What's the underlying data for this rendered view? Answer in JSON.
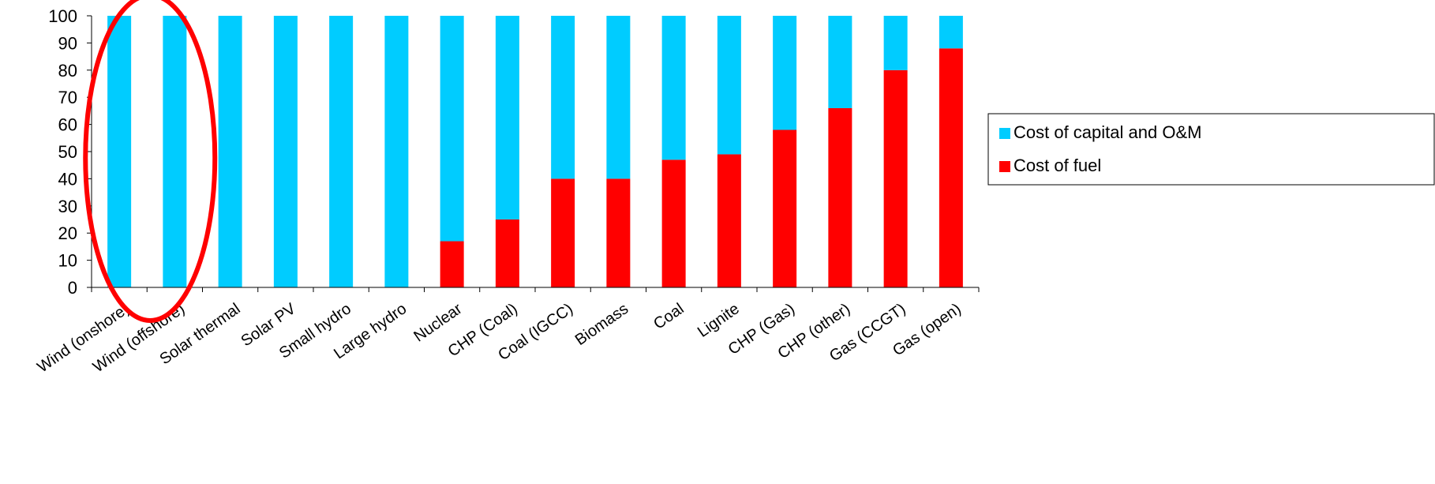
{
  "chart_data": {
    "type": "bar",
    "stacked": true,
    "percent": true,
    "categories": [
      "Wind (onshore)",
      "Wind (offshore)",
      "Solar thermal",
      "Solar PV",
      "Small hydro",
      "Large hydro",
      "Nuclear",
      "CHP (Coal)",
      "Coal (IGCC)",
      "Biomass",
      "Coal",
      "Lignite",
      "CHP (Gas)",
      "CHP (other)",
      "Gas (CCGT)",
      "Gas (open)"
    ],
    "series": [
      {
        "name": "Cost of fuel",
        "color": "#ff0000",
        "values": [
          0,
          0,
          0,
          0,
          0,
          0,
          17,
          25,
          40,
          40,
          47,
          49,
          58,
          66,
          80,
          88
        ]
      },
      {
        "name": "Cost of capital and O&M",
        "color": "#00ccff",
        "values": [
          100,
          100,
          100,
          100,
          100,
          100,
          83,
          75,
          60,
          60,
          53,
          51,
          42,
          34,
          20,
          12
        ]
      }
    ],
    "legend_order": [
      "Cost of capital and O&M",
      "Cost of fuel"
    ],
    "y_ticks": [
      "0",
      "10",
      "20",
      "30",
      "40",
      "50",
      "60",
      "70",
      "80",
      "90",
      "100"
    ],
    "ylim": [
      0,
      100
    ],
    "grid": false,
    "legend_position": "right",
    "annotation": {
      "shape": "ellipse",
      "color": "#ff0000",
      "encloses": [
        "Wind (onshore)",
        "Wind (offshore)"
      ]
    }
  }
}
